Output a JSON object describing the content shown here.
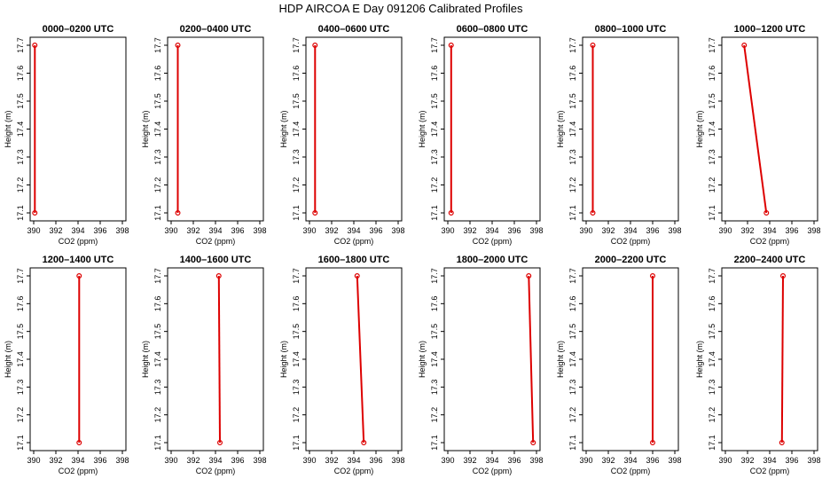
{
  "title": "HDP AIRCOA E  Day 091206  Calibrated Profiles",
  "colors": {
    "series": "#dd0000",
    "axis": "#000000",
    "background": "#ffffff"
  },
  "chart_data": [
    {
      "type": "line",
      "title": "0000–0200 UTC",
      "xlabel": "CO2 (ppm)",
      "ylabel": "Height (m)",
      "xlim": [
        390,
        398
      ],
      "ylim": [
        17.1,
        17.7
      ],
      "xticks": [
        "390",
        "392",
        "394",
        "396",
        "398"
      ],
      "yticks": [
        "17.1",
        "17.2",
        "17.3",
        "17.4",
        "17.5",
        "17.6",
        "17.7"
      ],
      "grid": false,
      "series": [
        {
          "x": [
            390.1,
            390.1
          ],
          "y": [
            17.1,
            17.7
          ],
          "marker": "open-circle"
        }
      ]
    },
    {
      "type": "line",
      "title": "0200–0400 UTC",
      "xlabel": "CO2 (ppm)",
      "ylabel": "Height (m)",
      "xlim": [
        390,
        398
      ],
      "ylim": [
        17.1,
        17.7
      ],
      "xticks": [
        "390",
        "392",
        "394",
        "396",
        "398"
      ],
      "yticks": [
        "17.1",
        "17.2",
        "17.3",
        "17.4",
        "17.5",
        "17.6",
        "17.7"
      ],
      "grid": false,
      "series": [
        {
          "x": [
            390.6,
            390.6
          ],
          "y": [
            17.1,
            17.7
          ],
          "marker": "open-circle"
        }
      ]
    },
    {
      "type": "line",
      "title": "0400–0600 UTC",
      "xlabel": "CO2 (ppm)",
      "ylabel": "Height (m)",
      "xlim": [
        390,
        398
      ],
      "ylim": [
        17.1,
        17.7
      ],
      "xticks": [
        "390",
        "392",
        "394",
        "396",
        "398"
      ],
      "yticks": [
        "17.1",
        "17.2",
        "17.3",
        "17.4",
        "17.5",
        "17.6",
        "17.7"
      ],
      "grid": false,
      "series": [
        {
          "x": [
            390.5,
            390.5
          ],
          "y": [
            17.1,
            17.7
          ],
          "marker": "open-circle"
        }
      ]
    },
    {
      "type": "line",
      "title": "0600–0800 UTC",
      "xlabel": "CO2 (ppm)",
      "ylabel": "Height (m)",
      "xlim": [
        390,
        398
      ],
      "ylim": [
        17.1,
        17.7
      ],
      "xticks": [
        "390",
        "392",
        "394",
        "396",
        "398"
      ],
      "yticks": [
        "17.1",
        "17.2",
        "17.3",
        "17.4",
        "17.5",
        "17.6",
        "17.7"
      ],
      "grid": false,
      "series": [
        {
          "x": [
            390.3,
            390.3
          ],
          "y": [
            17.1,
            17.7
          ],
          "marker": "open-circle"
        }
      ]
    },
    {
      "type": "line",
      "title": "0800–1000 UTC",
      "xlabel": "CO2 (ppm)",
      "ylabel": "Height (m)",
      "xlim": [
        390,
        398
      ],
      "ylim": [
        17.1,
        17.7
      ],
      "xticks": [
        "390",
        "392",
        "394",
        "396",
        "398"
      ],
      "yticks": [
        "17.1",
        "17.2",
        "17.3",
        "17.4",
        "17.5",
        "17.6",
        "17.7"
      ],
      "grid": false,
      "series": [
        {
          "x": [
            390.6,
            390.6
          ],
          "y": [
            17.1,
            17.7
          ],
          "marker": "open-circle"
        }
      ]
    },
    {
      "type": "line",
      "title": "1000–1200 UTC",
      "xlabel": "CO2 (ppm)",
      "ylabel": "Height (m)",
      "xlim": [
        390,
        398
      ],
      "ylim": [
        17.1,
        17.7
      ],
      "xticks": [
        "390",
        "392",
        "394",
        "396",
        "398"
      ],
      "yticks": [
        "17.1",
        "17.2",
        "17.3",
        "17.4",
        "17.5",
        "17.6",
        "17.7"
      ],
      "grid": false,
      "series": [
        {
          "x": [
            393.7,
            391.7
          ],
          "y": [
            17.1,
            17.7
          ],
          "marker": "open-circle"
        }
      ]
    },
    {
      "type": "line",
      "title": "1200–1400 UTC",
      "xlabel": "CO2 (ppm)",
      "ylabel": "Height (m)",
      "xlim": [
        390,
        398
      ],
      "ylim": [
        17.1,
        17.7
      ],
      "xticks": [
        "390",
        "392",
        "394",
        "396",
        "398"
      ],
      "yticks": [
        "17.1",
        "17.2",
        "17.3",
        "17.4",
        "17.5",
        "17.6",
        "17.7"
      ],
      "grid": false,
      "series": [
        {
          "x": [
            394.1,
            394.1
          ],
          "y": [
            17.1,
            17.7
          ],
          "marker": "open-circle"
        }
      ]
    },
    {
      "type": "line",
      "title": "1400–1600 UTC",
      "xlabel": "CO2 (ppm)",
      "ylabel": "Height (m)",
      "xlim": [
        390,
        398
      ],
      "ylim": [
        17.1,
        17.7
      ],
      "xticks": [
        "390",
        "392",
        "394",
        "396",
        "398"
      ],
      "yticks": [
        "17.1",
        "17.2",
        "17.3",
        "17.4",
        "17.5",
        "17.6",
        "17.7"
      ],
      "grid": false,
      "series": [
        {
          "x": [
            394.4,
            394.3
          ],
          "y": [
            17.1,
            17.7
          ],
          "marker": "open-circle"
        }
      ]
    },
    {
      "type": "line",
      "title": "1600–1800 UTC",
      "xlabel": "CO2 (ppm)",
      "ylabel": "Height (m)",
      "xlim": [
        390,
        398
      ],
      "ylim": [
        17.1,
        17.7
      ],
      "xticks": [
        "390",
        "392",
        "394",
        "396",
        "398"
      ],
      "yticks": [
        "17.1",
        "17.2",
        "17.3",
        "17.4",
        "17.5",
        "17.6",
        "17.7"
      ],
      "grid": false,
      "series": [
        {
          "x": [
            394.9,
            394.3
          ],
          "y": [
            17.1,
            17.7
          ],
          "marker": "open-circle"
        }
      ]
    },
    {
      "type": "line",
      "title": "1800–2000 UTC",
      "xlabel": "CO2 (ppm)",
      "ylabel": "Height (m)",
      "xlim": [
        390,
        398
      ],
      "ylim": [
        17.1,
        17.7
      ],
      "xticks": [
        "390",
        "392",
        "394",
        "396",
        "398"
      ],
      "yticks": [
        "17.1",
        "17.2",
        "17.3",
        "17.4",
        "17.5",
        "17.6",
        "17.7"
      ],
      "grid": false,
      "series": [
        {
          "x": [
            397.7,
            397.3
          ],
          "y": [
            17.1,
            17.7
          ],
          "marker": "open-circle"
        }
      ]
    },
    {
      "type": "line",
      "title": "2000–2200 UTC",
      "xlabel": "CO2 (ppm)",
      "ylabel": "Height (m)",
      "xlim": [
        390,
        398
      ],
      "ylim": [
        17.1,
        17.7
      ],
      "xticks": [
        "390",
        "392",
        "394",
        "396",
        "398"
      ],
      "yticks": [
        "17.1",
        "17.2",
        "17.3",
        "17.4",
        "17.5",
        "17.6",
        "17.7"
      ],
      "grid": false,
      "series": [
        {
          "x": [
            396.0,
            396.0
          ],
          "y": [
            17.1,
            17.7
          ],
          "marker": "open-circle"
        }
      ]
    },
    {
      "type": "line",
      "title": "2200–2400 UTC",
      "xlabel": "CO2 (ppm)",
      "ylabel": "Height (m)",
      "xlim": [
        390,
        398
      ],
      "ylim": [
        17.1,
        17.7
      ],
      "xticks": [
        "390",
        "392",
        "394",
        "396",
        "398"
      ],
      "yticks": [
        "17.1",
        "17.2",
        "17.3",
        "17.4",
        "17.5",
        "17.6",
        "17.7"
      ],
      "grid": false,
      "series": [
        {
          "x": [
            395.1,
            395.2
          ],
          "y": [
            17.1,
            17.7
          ],
          "marker": "open-circle"
        }
      ]
    }
  ]
}
